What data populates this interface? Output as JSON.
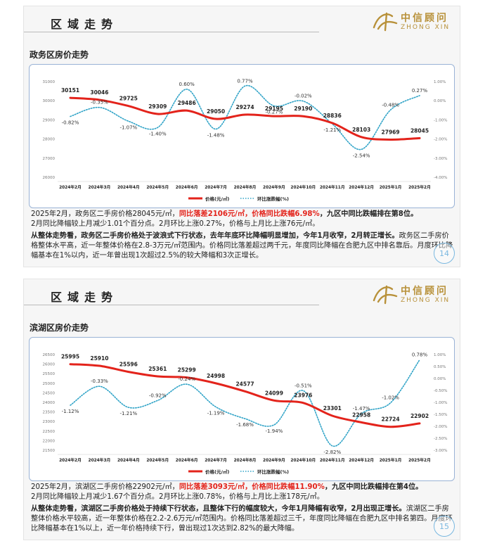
{
  "slides": [
    {
      "header_title": "区域走势",
      "logo": {
        "cn": "中信顾问",
        "en": "ZHONG XIN"
      },
      "subtitle": "政务区房价走势",
      "page_number": "14",
      "text": {
        "p1_a": "2025年2月，政务区二手房价格28045元/㎡，",
        "p1_red": "同比落差2106元/㎡，价格同比跌幅6.98%",
        "p1_b": "，九区中同比跌幅排在第8位。",
        "p1_line2": "2月同比降幅较上月减少1.01个百分点。2月环比上涨0.27%，价格与上月比上涨76元/㎡。",
        "p2_bold": "从整体走势看，政务区二手房价格处于波浪式下行状态，去年年底环比降幅明显增加，今年1月收窄，2月转正增长。",
        "p2_rest": "政务区二手房价格整体水平高，近一年整体价格在2.8-3万元/㎡范围内。价格同比落差超过两千元，年度同比降幅在合肥九区中排名靠后。月度环比降幅基本在1%以内，近一年曾出现1次超过2.5%的较大降幅和3次正增长。"
      }
    },
    {
      "header_title": "区域走势",
      "logo": {
        "cn": "中信顾问",
        "en": "ZHONG XIN"
      },
      "subtitle": "滨湖区房价走势",
      "page_number": "15",
      "text": {
        "p1_a": "2025年2月，滨湖区二手房价格22902元/㎡，",
        "p1_red": "同比落差3093元/㎡，价格同比跌幅11.90%",
        "p1_b": "，九区中同比跌幅排在第4位。",
        "p1_line2": "2月同比降幅较上月减少1.67个百分点。2月环比上涨0.78%，价格与上月比上涨178元/㎡。",
        "p2_bold": "从整体走势看，滨湖区二手房价格处于持续下行状态，且整体下行的幅度较大，今年1月降幅有收窄，2月出现正增长。",
        "p2_rest": "滨湖区二手房整体价格水平较高，近一年整体价格在2.2-2.6万元/㎡范围内。价格同比落差超过三千，年度同比降幅在合肥九区中排名第四。月度环比降幅基本在1%以上，近一年价格持续下行，曾出现过1次达到2.82%的最大降幅。"
      }
    }
  ],
  "chart_data": [
    {
      "type": "line",
      "categories": [
        "2024年2月",
        "2024年3月",
        "2024年4月",
        "2024年5月",
        "2024年6月",
        "2024年7月",
        "2024年8月",
        "2024年9月",
        "2024年10月",
        "2024年11月",
        "2024年12月",
        "2025年1月",
        "2025年2月"
      ],
      "series": [
        {
          "name": "价格(元/㎡)",
          "axis": "left",
          "color": "#e3231b",
          "style": "solid",
          "values": [
            30151,
            30046,
            29725,
            29309,
            29486,
            29050,
            29274,
            29195,
            29190,
            28836,
            28103,
            27969,
            28045
          ]
        },
        {
          "name": "环比涨跌幅(%)",
          "axis": "right",
          "color": "#2fa3c7",
          "style": "dotted",
          "values": [
            -0.82,
            -0.35,
            -1.07,
            -1.4,
            0.6,
            -1.48,
            0.77,
            -0.27,
            -0.02,
            -1.21,
            -2.54,
            -0.48,
            0.27
          ],
          "labels": [
            "-0.82%",
            "-0.35%",
            "-1.07%",
            "-1.40%",
            "0.60%",
            "-1.48%",
            "0.77%",
            "-0.27%",
            "-0.02%",
            "-1.21%",
            "-2.54%",
            "-0.48%",
            "0.27%"
          ]
        }
      ],
      "left_ticks": [
        "31000",
        "30000",
        "29000",
        "28000",
        "27000",
        "26000"
      ],
      "left_ylim": [
        26000,
        31000
      ],
      "right_ticks": [
        "1.00%",
        "0.00%",
        "-1.00%",
        "-2.00%",
        "-3.00%",
        "-4.00%"
      ],
      "right_ylim": [
        -4,
        1
      ],
      "legend_position": "bottom",
      "grid": false
    },
    {
      "type": "line",
      "categories": [
        "2024年2月",
        "2024年3月",
        "2024年4月",
        "2024年5月",
        "2024年6月",
        "2024年7月",
        "2024年8月",
        "2024年9月",
        "2024年10月",
        "2024年11月",
        "2024年12月",
        "2025年1月",
        "2025年2月"
      ],
      "series": [
        {
          "name": "价格(元/㎡)",
          "axis": "left",
          "color": "#e3231b",
          "style": "solid",
          "values": [
            25995,
            25910,
            25596,
            25361,
            25299,
            24998,
            24577,
            24099,
            23976,
            23301,
            22958,
            22724,
            22902
          ]
        },
        {
          "name": "环比涨跌幅(%)",
          "axis": "right",
          "color": "#2fa3c7",
          "style": "dotted",
          "values": [
            -1.12,
            -0.33,
            -1.21,
            -0.92,
            -0.24,
            -1.19,
            -1.68,
            -1.94,
            -0.51,
            -2.82,
            -1.47,
            -1.02,
            0.78
          ],
          "labels": [
            "-1.12%",
            "-0.33%",
            "-1.21%",
            "-0.92%",
            "-0.24%",
            "-1.19%",
            "-1.68%",
            "-1.94%",
            "-0.51%",
            "-2.82%",
            "-1.47%",
            "-1.02%",
            "0.78%"
          ]
        }
      ],
      "left_ticks": [
        "26500",
        "26000",
        "25500",
        "25000",
        "24500",
        "24000",
        "23500",
        "23000",
        "22500",
        "22000",
        "21500"
      ],
      "left_ylim": [
        21500,
        26500
      ],
      "right_ticks": [
        "1.00%",
        "0.50%",
        "0.00%",
        "-0.50%",
        "-1.00%",
        "-1.50%",
        "-2.00%",
        "-2.50%",
        "-3.00%"
      ],
      "right_ylim": [
        -3,
        1
      ],
      "legend_position": "bottom",
      "grid": false
    }
  ]
}
